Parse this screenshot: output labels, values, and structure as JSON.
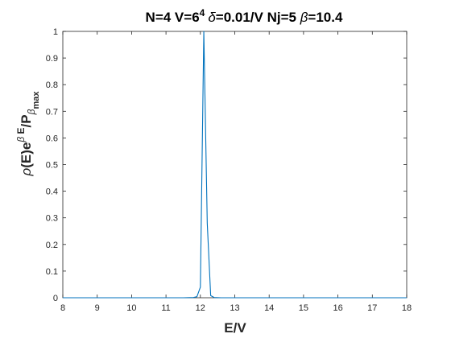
{
  "chart_data": {
    "type": "line",
    "title": {
      "prefix": "N=4 V=6",
      "power": "4",
      "delta_sym": "δ",
      "delta_rest": "=0.01/V Nj=5 ",
      "beta_sym": "β",
      "beta_rest": "=10.4"
    },
    "xlabel": "E/V",
    "ylabel": {
      "rho": "ρ",
      "base": "(E)e",
      "exp_beta": "β",
      "exp_rest": " E",
      "tail": "/P",
      "sub_beta": "β",
      "sub_max": "max"
    },
    "xlim": [
      8,
      18
    ],
    "ylim": [
      0,
      1
    ],
    "xticks": [
      8,
      9,
      10,
      11,
      12,
      13,
      14,
      15,
      16,
      17,
      18
    ],
    "xtick_labels": [
      "8",
      "9",
      "10",
      "11",
      "12",
      "13",
      "14",
      "15",
      "16",
      "17",
      "18"
    ],
    "yticks": [
      0,
      0.1,
      0.2,
      0.3,
      0.4,
      0.5,
      0.6,
      0.7,
      0.8,
      0.9,
      1
    ],
    "ytick_labels": [
      "0",
      "0.1",
      "0.2",
      "0.3",
      "0.4",
      "0.5",
      "0.6",
      "0.7",
      "0.8",
      "0.9",
      "1"
    ],
    "grid": false,
    "series": [
      {
        "color": "#0072bd",
        "x": [
          8,
          11.5,
          11.8,
          11.9,
          12.0,
          12.1,
          12.2,
          12.3,
          12.4,
          12.6,
          13,
          18
        ],
        "y": [
          0,
          0,
          0.001,
          0.004,
          0.04,
          1.0,
          0.28,
          0.008,
          0.001,
          0,
          0,
          0
        ]
      }
    ]
  }
}
